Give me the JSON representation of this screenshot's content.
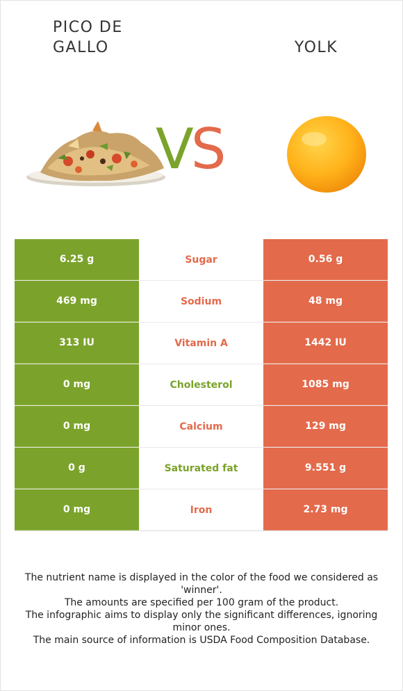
{
  "header": {
    "left_food": "PICO DE\nGALLO",
    "right_food": "YOLK",
    "vs_v": "V",
    "vs_s": "S"
  },
  "colors": {
    "left": "#7ba32b",
    "right": "#e36a4b"
  },
  "rows": [
    {
      "nutrient": "Sugar",
      "left": "6.25 g",
      "right": "0.56 g",
      "winner": "right"
    },
    {
      "nutrient": "Sodium",
      "left": "469 mg",
      "right": "48 mg",
      "winner": "right"
    },
    {
      "nutrient": "Vitamin A",
      "left": "313 IU",
      "right": "1442 IU",
      "winner": "right"
    },
    {
      "nutrient": "Cholesterol",
      "left": "0 mg",
      "right": "1085 mg",
      "winner": "left"
    },
    {
      "nutrient": "Calcium",
      "left": "0 mg",
      "right": "129 mg",
      "winner": "right"
    },
    {
      "nutrient": "Saturated fat",
      "left": "0 g",
      "right": "9.551 g",
      "winner": "left"
    },
    {
      "nutrient": "Iron",
      "left": "0 mg",
      "right": "2.73 mg",
      "winner": "right"
    }
  ],
  "footnote": {
    "line1": "The nutrient name is displayed in the color of the food we considered as 'winner'.",
    "line2": "The amounts are specified per 100 gram of the product.",
    "line3": "The infographic aims to display only the significant differences, ignoring minor ones.",
    "line4": "The main source of information is USDA Food Composition Database."
  }
}
